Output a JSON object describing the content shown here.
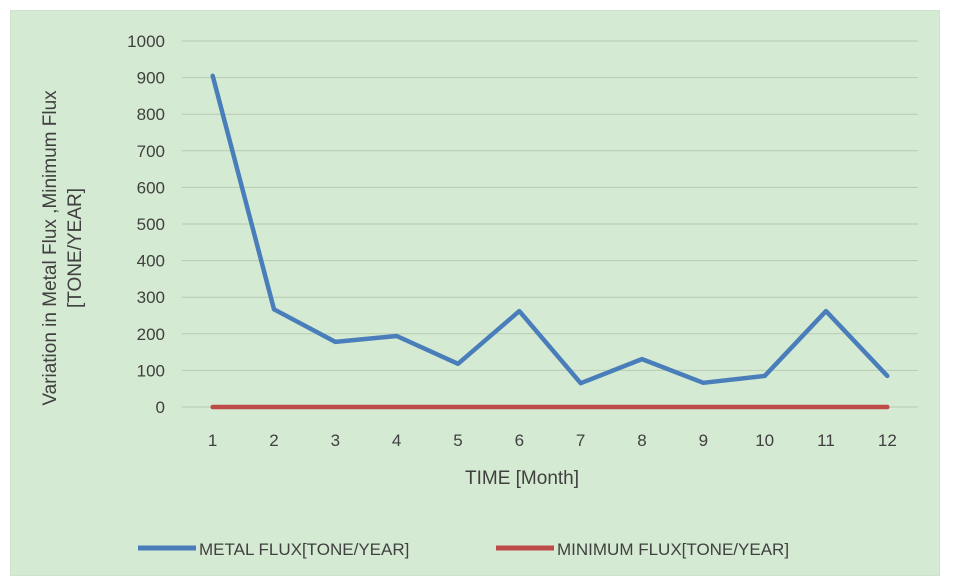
{
  "chart_data": {
    "type": "line",
    "title": "",
    "xlabel": "TIME [Month]",
    "ylabel_lines": [
      "Variation in Metal Flux ,Minimum Flux",
      "[TONE/YEAR]"
    ],
    "x": [
      "1",
      "2",
      "3",
      "4",
      "5",
      "6",
      "7",
      "8",
      "9",
      "10",
      "11",
      "12"
    ],
    "y_ticks": [
      "0",
      "100",
      "200",
      "300",
      "400",
      "500",
      "600",
      "700",
      "800",
      "900",
      "1000"
    ],
    "ylim": [
      0,
      1000
    ],
    "grid": true,
    "legend_position": "bottom",
    "background_color": "#d5ead2",
    "series": [
      {
        "name": "METAL FLUX[TONE/YEAR]",
        "color": "#4a7ebb",
        "values": [
          905,
          267,
          178,
          194,
          118,
          262,
          65,
          131,
          66,
          85,
          262,
          85
        ]
      },
      {
        "name": "MINIMUM FLUX[TONE/YEAR]",
        "color": "#be4b48",
        "values": [
          0,
          0,
          0,
          0,
          0,
          0,
          0,
          0,
          0,
          0,
          0,
          0
        ]
      }
    ]
  }
}
